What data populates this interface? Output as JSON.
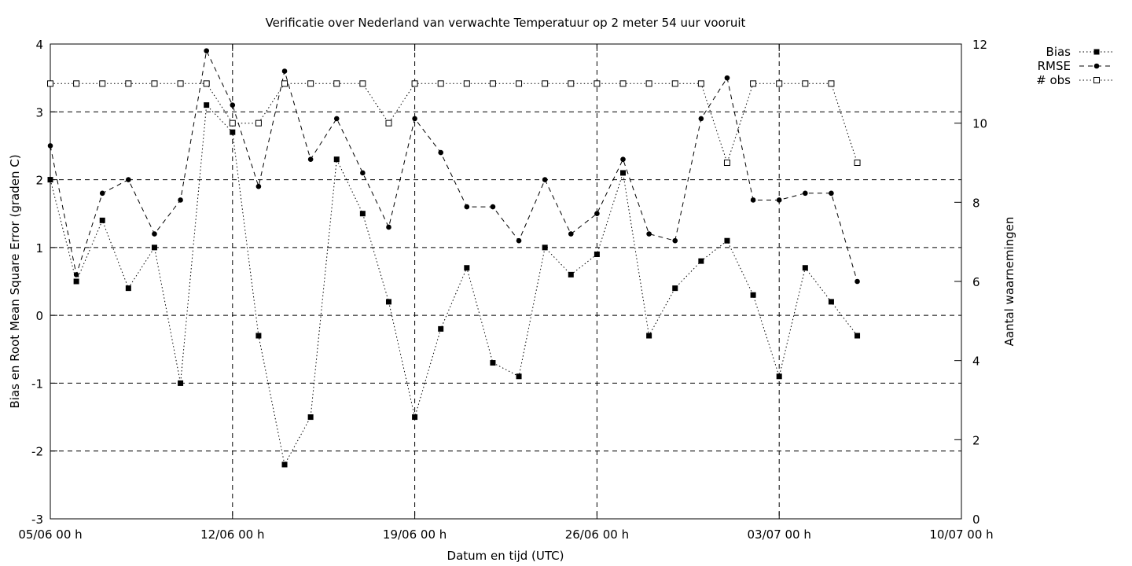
{
  "chart_data": {
    "type": "line",
    "title": "Verificatie over Nederland van verwachte Temperatuur op 2 meter 54 uur vooruit",
    "xlabel": "Datum en tijd (UTC)",
    "ylabel_left": "Bias en Root Mean Square Error (graden C)",
    "ylabel_right": "Aantal waarnemingen",
    "x_unit": "days from 05/06 00 h",
    "xlim": [
      0,
      35
    ],
    "ylim_left": [
      -3,
      4
    ],
    "ylim_right": [
      0,
      12
    ],
    "x_ticks": [
      {
        "value": 0,
        "label": "05/06 00 h"
      },
      {
        "value": 7,
        "label": "12/06 00 h"
      },
      {
        "value": 14,
        "label": "19/06 00 h"
      },
      {
        "value": 21,
        "label": "26/06 00 h"
      },
      {
        "value": 28,
        "label": "03/07 00 h"
      },
      {
        "value": 35,
        "label": "10/07 00 h"
      }
    ],
    "y_ticks_left": [
      "-3",
      "-2",
      "-1",
      "0",
      "1",
      "2",
      "3",
      "4"
    ],
    "y_ticks_right": [
      "0",
      "2",
      "4",
      "6",
      "8",
      "10",
      "12"
    ],
    "grid": true,
    "legend_position": "top-right, outside",
    "series": [
      {
        "name": "Bias",
        "axis": "left",
        "marker": "filled-square",
        "dash": "dotted",
        "x": [
          0,
          1,
          2,
          3,
          4,
          5,
          6,
          7,
          8,
          9,
          10,
          11,
          12,
          13,
          14,
          15,
          16,
          17,
          18,
          19,
          20,
          21,
          22,
          23,
          24,
          25,
          26,
          27,
          28,
          29,
          30,
          31
        ],
        "values": [
          2.0,
          0.5,
          1.4,
          0.4,
          1.0,
          -1.0,
          3.1,
          2.7,
          -0.3,
          -2.2,
          -1.5,
          2.3,
          1.5,
          0.2,
          -1.5,
          -0.2,
          0.7,
          -0.7,
          -0.9,
          1.0,
          0.6,
          0.9,
          2.1,
          -0.3,
          0.4,
          0.8,
          1.1,
          0.3,
          -0.9,
          0.7,
          0.2,
          -0.3
        ]
      },
      {
        "name": "RMSE",
        "axis": "left",
        "marker": "filled-circle",
        "dash": "dashed",
        "x": [
          0,
          1,
          2,
          3,
          4,
          5,
          6,
          7,
          8,
          9,
          10,
          11,
          12,
          13,
          14,
          15,
          16,
          17,
          18,
          19,
          20,
          21,
          22,
          23,
          24,
          25,
          26,
          27,
          28,
          29,
          30,
          31
        ],
        "values": [
          2.5,
          0.6,
          1.8,
          2.0,
          1.2,
          1.7,
          3.9,
          3.1,
          1.9,
          3.6,
          2.3,
          2.9,
          2.1,
          1.3,
          2.9,
          2.4,
          1.6,
          1.6,
          1.1,
          2.0,
          1.2,
          1.5,
          2.3,
          1.2,
          1.1,
          2.9,
          3.5,
          1.7,
          1.7,
          1.8,
          1.8,
          0.5
        ]
      },
      {
        "name": "# obs",
        "axis": "right",
        "marker": "open-square",
        "dash": "dotted",
        "x": [
          0,
          1,
          2,
          3,
          4,
          5,
          6,
          7,
          8,
          9,
          10,
          11,
          12,
          13,
          14,
          15,
          16,
          17,
          18,
          19,
          20,
          21,
          22,
          23,
          24,
          25,
          26,
          27,
          28,
          29,
          30,
          31
        ],
        "values": [
          11,
          11,
          11,
          11,
          11,
          11,
          11,
          10,
          10,
          11,
          11,
          11,
          11,
          10,
          11,
          11,
          11,
          11,
          11,
          11,
          11,
          11,
          11,
          11,
          11,
          11,
          9,
          11,
          11,
          11,
          11,
          9
        ]
      }
    ]
  }
}
